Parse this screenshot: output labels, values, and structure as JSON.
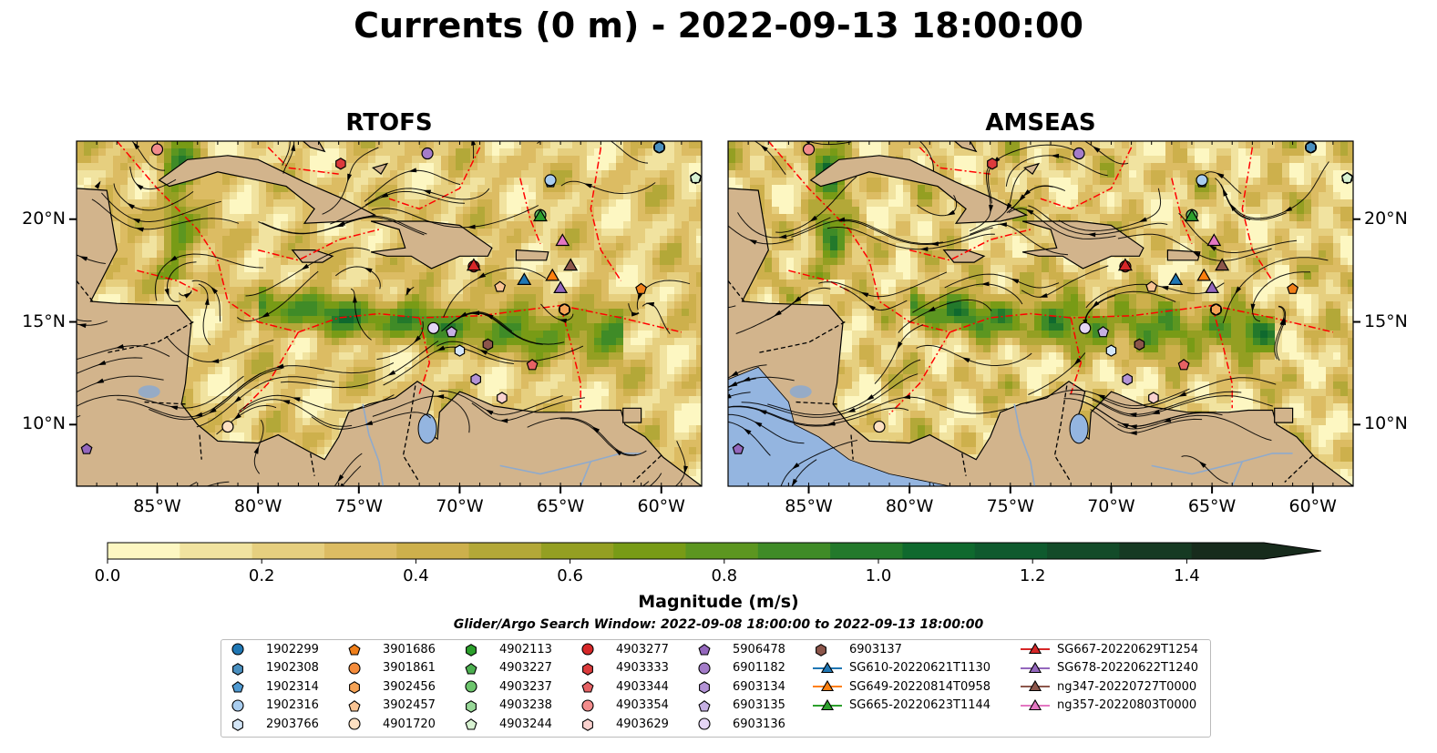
{
  "title": "Currents (0 m) - 2022-09-13 18:00:00",
  "panels": [
    {
      "name": "RTOFS"
    },
    {
      "name": "AMSEAS"
    }
  ],
  "colors": {
    "land": "#d2b48c",
    "ocean_pacific": "#94b5e0",
    "stream": "#000000",
    "eez": "#ff0000",
    "border": "#000000",
    "river": "#8faacc"
  },
  "chart_data": {
    "type": "heatmap",
    "variable": "Currents (0 m)",
    "colorbar": {
      "label": "Magnitude (m/s)",
      "range": [
        0.0,
        1.5
      ],
      "extend": "max",
      "ticks": [
        "0.0",
        "0.2",
        "0.4",
        "0.6",
        "0.8",
        "1.0",
        "1.2",
        "1.4"
      ],
      "colors": [
        "#fdf7c2",
        "#f1e3a0",
        "#e6cf7f",
        "#dcbc63",
        "#cdb04c",
        "#b3a838",
        "#949f22",
        "#789b16",
        "#5c9620",
        "#3f8b27",
        "#23792b",
        "#0f692e",
        "#0f5a2e",
        "#134b29",
        "#163a23",
        "#172b1c"
      ]
    },
    "x_ticks": [
      "85°W",
      "80°W",
      "75°W",
      "70°W",
      "65°W",
      "60°W"
    ],
    "x_tick_values": [
      -85,
      -80,
      -75,
      -70,
      -65,
      -60
    ],
    "y_ticks": [
      "20°N",
      "15°N",
      "10°N"
    ],
    "y_tick_values": [
      20,
      15,
      10
    ],
    "lon_range": [
      -89,
      -58
    ],
    "lat_range": [
      7,
      23.8
    ],
    "search_window": "Glider/Argo Search Window: 2022-09-08 18:00:00 to 2022-09-13 18:00:00",
    "argo_floats": [
      {
        "id": "1902299",
        "marker": "circle",
        "color": "#1f77b4",
        "lon": -60.1,
        "lat": 23.5
      },
      {
        "id": "1902308",
        "marker": "hexagon",
        "color": "#4a90c0",
        "lon": -60.1,
        "lat": 23.5
      },
      {
        "id": "1902314",
        "marker": "pentagon",
        "color": "#4f9ad2",
        "lon": -65.5,
        "lat": 21.8
      },
      {
        "id": "1902316",
        "marker": "circle",
        "color": "#a9cdef",
        "lon": -65.5,
        "lat": 21.9
      },
      {
        "id": "2903766",
        "marker": "hexagon",
        "color": "#d4e6f7",
        "lon": -70.0,
        "lat": 13.6
      },
      {
        "id": "3901686",
        "marker": "pentagon",
        "color": "#f07f1a",
        "lon": -61.0,
        "lat": 16.6
      },
      {
        "id": "3901861",
        "marker": "circle",
        "color": "#f58c3c",
        "lon": -64.8,
        "lat": 15.6
      },
      {
        "id": "3902456",
        "marker": "hexagon",
        "color": "#f6a356",
        "lon": -64.8,
        "lat": 15.6
      },
      {
        "id": "3902457",
        "marker": "pentagon",
        "color": "#f9c494",
        "lon": -68.0,
        "lat": 16.7
      },
      {
        "id": "4901720",
        "marker": "circle",
        "color": "#fde0c2",
        "lon": -81.5,
        "lat": 9.9
      },
      {
        "id": "4902113",
        "marker": "hexagon",
        "color": "#2ca02c",
        "lon": -66.0,
        "lat": 20.2
      },
      {
        "id": "4903227",
        "marker": "pentagon",
        "color": "#4cb050",
        "lon": -66.0,
        "lat": 20.2
      },
      {
        "id": "4903237",
        "marker": "circle",
        "color": "#6cc56c",
        "lon": -66.0,
        "lat": 20.2
      },
      {
        "id": "4903238",
        "marker": "hexagon",
        "color": "#98d898",
        "lon": -58.3,
        "lat": 22.0
      },
      {
        "id": "4903244",
        "marker": "pentagon",
        "color": "#d8f2d2",
        "lon": -58.3,
        "lat": 22.0
      },
      {
        "id": "4903277",
        "marker": "circle",
        "color": "#d62728",
        "lon": -69.3,
        "lat": 17.7
      },
      {
        "id": "4903333",
        "marker": "hexagon",
        "color": "#dc3b3c",
        "lon": -75.9,
        "lat": 22.7
      },
      {
        "id": "4903344",
        "marker": "pentagon",
        "color": "#e66264",
        "lon": -66.4,
        "lat": 12.9
      },
      {
        "id": "4903354",
        "marker": "circle",
        "color": "#f28c8c",
        "lon": -85.0,
        "lat": 23.4
      },
      {
        "id": "4903629",
        "marker": "hexagon",
        "color": "#fad2cf",
        "lon": -67.9,
        "lat": 11.3
      },
      {
        "id": "5906478",
        "marker": "pentagon",
        "color": "#9467bd",
        "lon": -88.5,
        "lat": 8.8
      },
      {
        "id": "6901182",
        "marker": "circle",
        "color": "#a47cc9",
        "lon": -71.6,
        "lat": 23.2
      },
      {
        "id": "6903134",
        "marker": "hexagon",
        "color": "#b393d6",
        "lon": -69.2,
        "lat": 12.2
      },
      {
        "id": "6903135",
        "marker": "pentagon",
        "color": "#c6b0e2",
        "lon": -70.4,
        "lat": 14.5
      },
      {
        "id": "6903136",
        "marker": "circle",
        "color": "#e5d6f5",
        "lon": -71.3,
        "lat": 14.7
      },
      {
        "id": "6903137",
        "marker": "hexagon",
        "color": "#8c564b",
        "lon": -68.6,
        "lat": 13.9
      }
    ],
    "gliders": [
      {
        "id": "SG610-20220621T1130",
        "color": "#1f77b4",
        "lon": -66.8,
        "lat": 17.0
      },
      {
        "id": "SG649-20220814T0958",
        "color": "#ff7f0e",
        "lon": -65.4,
        "lat": 17.2
      },
      {
        "id": "SG665-20220623T1144",
        "color": "#2ca02c",
        "lon": -66.0,
        "lat": 20.1
      },
      {
        "id": "SG667-20220629T1254",
        "color": "#d62728",
        "lon": -69.3,
        "lat": 17.7
      },
      {
        "id": "SG678-20220622T1240",
        "color": "#9467bd",
        "lon": -65.0,
        "lat": 16.6
      },
      {
        "id": "ng347-20220727T0000",
        "color": "#8c564b",
        "lon": -64.5,
        "lat": 17.7
      },
      {
        "id": "ng357-20220803T0000",
        "color": "#e377c2",
        "lon": -64.9,
        "lat": 18.9
      }
    ]
  }
}
